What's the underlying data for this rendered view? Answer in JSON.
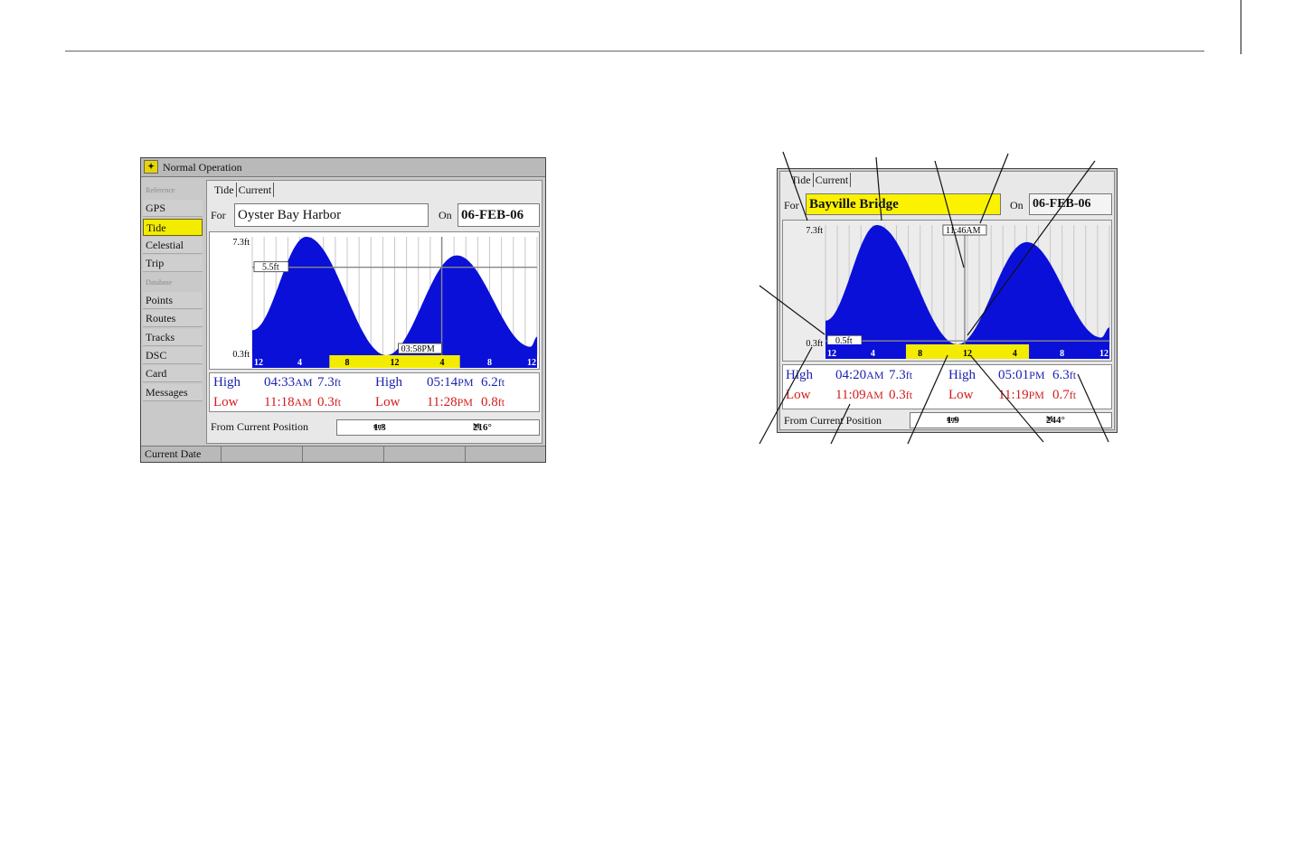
{
  "screen1": {
    "title": "Normal Operation",
    "sidebar": {
      "reference_header": "Reference",
      "gps": "GPS",
      "tide": "Tide",
      "celestial": "Celestial",
      "trip": "Trip",
      "database_header": "Database",
      "points": "Points",
      "routes": "Routes",
      "tracks": "Tracks",
      "dsc": "DSC",
      "card": "Card",
      "messages": "Messages"
    },
    "tabs": {
      "tide": "Tide",
      "current": "Current"
    },
    "for_label": "For",
    "station": "Oyster Bay Harbor",
    "on_label": "On",
    "date": "06-FEB-06",
    "chart": {
      "y_max": "7.3ft",
      "y_min": "0.3ft",
      "cursor_height": "5.5ft",
      "cursor_time": "03:58PM",
      "time_ticks": [
        "12",
        "4",
        "8",
        "12",
        "4",
        "8",
        "12"
      ]
    },
    "table": {
      "high_label": "High",
      "low_label": "Low",
      "high1_time": "04:33",
      "high1_ampm": "AM",
      "high1_height": "7.3",
      "high1_unit": "ft",
      "high2_time": "05:14",
      "high2_ampm": "PM",
      "high2_height": "6.2",
      "high2_unit": "ft",
      "low1_time": "11:18",
      "low1_ampm": "AM",
      "low1_height": "0.3",
      "low1_unit": "ft",
      "low2_time": "11:28",
      "low2_ampm": "PM",
      "low2_height": "0.8",
      "low2_unit": "ft"
    },
    "from_label": "From Current Position",
    "distance": "1.3",
    "distance_unit": "nm",
    "bearing": "216°",
    "bearing_unit": "M",
    "softkey": "Current Date"
  },
  "screen2": {
    "tabs": {
      "tide": "Tide",
      "current": "Current"
    },
    "for_label": "For",
    "station": "Bayville Bridge",
    "on_label": "On",
    "date": "06-FEB-06",
    "chart": {
      "y_max": "7.3ft",
      "y_min": "0.3ft",
      "cursor_height": "0.5ft",
      "cursor_time": "11:46AM",
      "time_ticks": [
        "12",
        "4",
        "8",
        "12",
        "4",
        "8",
        "12"
      ]
    },
    "table": {
      "high_label": "High",
      "low_label": "Low",
      "high1_time": "04:20",
      "high1_ampm": "AM",
      "high1_height": "7.3",
      "high1_unit": "ft",
      "high2_time": "05:01",
      "high2_ampm": "PM",
      "high2_height": "6.3",
      "high2_unit": "ft",
      "low1_time": "11:09",
      "low1_ampm": "AM",
      "low1_height": "0.3",
      "low1_unit": "ft",
      "low2_time": "11:19",
      "low2_ampm": "PM",
      "low2_height": "0.7",
      "low2_unit": "ft"
    },
    "from_label": "From Current Position",
    "distance": "1.9",
    "distance_unit": "nm",
    "bearing": "244°",
    "bearing_unit": "M"
  },
  "colors": {
    "tide_fill": "#0a10d8",
    "highlight": "#f3eb00",
    "high_text": "#1d22b0",
    "low_text": "#d41a1a"
  }
}
